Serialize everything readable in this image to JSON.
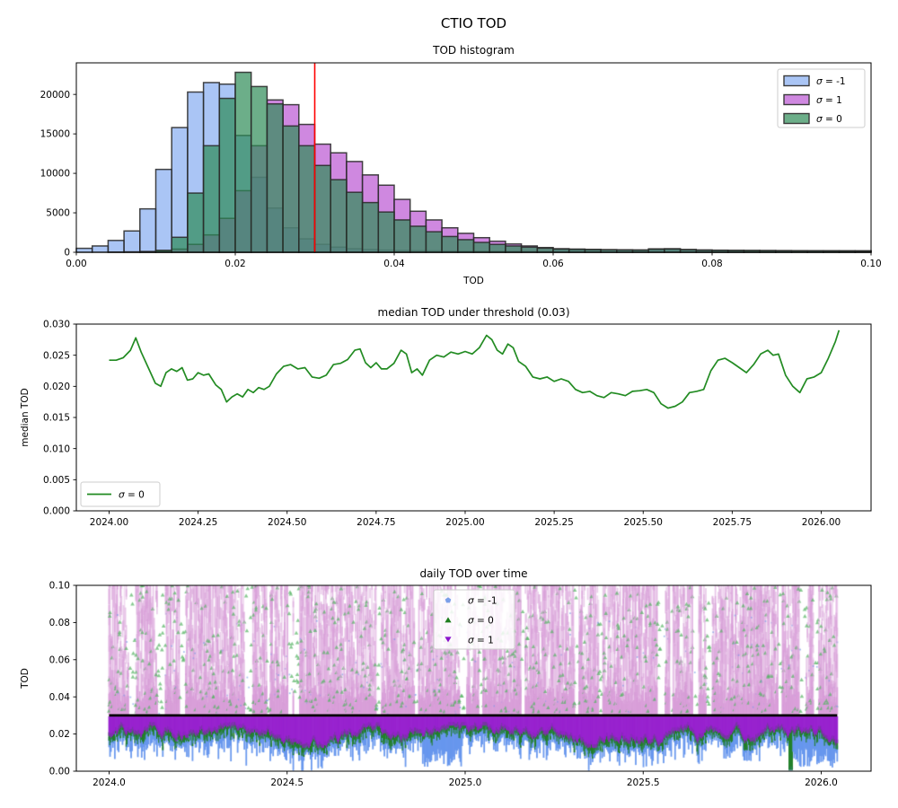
{
  "figure": {
    "title": "CTIO TOD"
  },
  "colors": {
    "hist_edge": "#2b2b2b",
    "threshold_red": "#ff0000",
    "threshold_black": "#000000",
    "blue": "#6495ED",
    "purple": "#BA55D3",
    "green": "#2E8B57",
    "line_green": "#228B22",
    "scatter_blue": "#6495ED",
    "scatter_green": "#1e7d1e",
    "scatter_purple": "#9400D3",
    "scatter_plum": "rgba(216,157,216,0.85)",
    "scatter_purple_dense": "rgba(150,30,205,0.95)"
  },
  "chart_data": [
    {
      "type": "bar",
      "title": "TOD histogram",
      "xlabel": "TOD",
      "xlim": [
        0,
        0.1
      ],
      "ylim": [
        0,
        24000
      ],
      "bin_start": 0,
      "bin_width": 0.002,
      "xticks": {
        "values": [
          0,
          0.02,
          0.04,
          0.06,
          0.08,
          0.1
        ],
        "labels": [
          "0.00",
          "0.02",
          "0.04",
          "0.06",
          "0.08",
          "0.10"
        ]
      },
      "yticks": {
        "values": [
          0,
          5000,
          10000,
          15000,
          20000
        ],
        "labels": [
          "0",
          "5000",
          "10000",
          "15000",
          "20000"
        ]
      },
      "threshold_line": {
        "x": 0.03
      },
      "legend_loc": "upper right",
      "series": [
        {
          "name": "σ = -1",
          "color": "#6495ED",
          "alpha": 0.55,
          "counts": [
            500,
            800,
            1500,
            2700,
            5500,
            10500,
            15800,
            20300,
            21500,
            21300,
            14800,
            9500,
            5600,
            3100,
            1700,
            1000,
            650,
            450,
            350,
            280,
            230,
            200,
            180,
            160,
            150,
            140,
            130,
            120,
            110,
            100,
            320,
            300,
            280,
            260,
            240,
            230,
            340,
            360,
            280,
            230,
            210,
            200,
            190,
            180,
            170,
            170,
            160,
            160,
            150,
            150
          ]
        },
        {
          "name": "σ = 1",
          "color": "#BA55D3",
          "alpha": 0.7,
          "counts": [
            0,
            0,
            0,
            0,
            50,
            150,
            400,
            1000,
            2200,
            4300,
            7800,
            13500,
            19300,
            18700,
            16200,
            13700,
            12600,
            11500,
            9800,
            8500,
            6700,
            5200,
            4100,
            3100,
            2400,
            1850,
            1400,
            1050,
            800,
            600,
            450,
            400,
            360,
            330,
            310,
            290,
            430,
            450,
            350,
            290,
            260,
            240,
            230,
            220,
            210,
            200,
            190,
            190,
            180,
            180
          ]
        },
        {
          "name": "σ = 0",
          "color": "#2E8B57",
          "alpha": 0.7,
          "counts": [
            0,
            0,
            20,
            50,
            100,
            250,
            1900,
            7500,
            13500,
            19500,
            22800,
            21000,
            18800,
            16000,
            13500,
            11000,
            9200,
            7600,
            6300,
            5100,
            4100,
            3300,
            2600,
            2000,
            1600,
            1250,
            1000,
            800,
            650,
            520,
            420,
            380,
            350,
            320,
            300,
            280,
            400,
            420,
            330,
            270,
            250,
            230,
            220,
            210,
            200,
            190,
            190,
            180,
            180,
            170
          ]
        }
      ]
    },
    {
      "type": "line",
      "title": "median TOD under threshold (0.03)",
      "ylabel": "median TOD",
      "xlim": [
        2023.908,
        2026.14
      ],
      "ylim": [
        0,
        0.03
      ],
      "xticks": {
        "values": [
          2024.0,
          2024.25,
          2024.5,
          2024.75,
          2025.0,
          2025.25,
          2025.5,
          2025.75,
          2026.0
        ],
        "labels": [
          "2024.00",
          "2024.25",
          "2024.50",
          "2024.75",
          "2025.00",
          "2025.25",
          "2025.50",
          "2025.75",
          "2026.00"
        ]
      },
      "yticks": {
        "values": [
          0,
          0.005,
          0.01,
          0.015,
          0.02,
          0.025,
          0.03
        ],
        "labels": [
          "0.000",
          "0.005",
          "0.010",
          "0.015",
          "0.020",
          "0.025",
          "0.030"
        ]
      },
      "legend_loc": "lower left",
      "series": [
        {
          "name": "σ = 0",
          "color": "#228B22",
          "x": [
            2024.0,
            2024.02,
            2024.04,
            2024.06,
            2024.075,
            2024.09,
            2024.11,
            2024.13,
            2024.145,
            2024.16,
            2024.175,
            2024.19,
            2024.205,
            2024.22,
            2024.235,
            2024.25,
            2024.265,
            2024.28,
            2024.3,
            2024.315,
            2024.33,
            2024.345,
            2024.36,
            2024.375,
            2024.39,
            2024.405,
            2024.42,
            2024.435,
            2024.45,
            2024.47,
            2024.49,
            2024.51,
            2024.53,
            2024.55,
            2024.57,
            2024.59,
            2024.61,
            2024.63,
            2024.65,
            2024.67,
            2024.69,
            2024.705,
            2024.72,
            2024.735,
            2024.75,
            2024.765,
            2024.78,
            2024.8,
            2024.82,
            2024.835,
            2024.85,
            2024.865,
            2024.88,
            2024.9,
            2024.92,
            2024.94,
            2024.96,
            2024.98,
            2025.0,
            2025.02,
            2025.04,
            2025.06,
            2025.075,
            2025.09,
            2025.105,
            2025.12,
            2025.135,
            2025.15,
            2025.17,
            2025.19,
            2025.21,
            2025.23,
            2025.25,
            2025.27,
            2025.29,
            2025.31,
            2025.33,
            2025.35,
            2025.37,
            2025.39,
            2025.41,
            2025.43,
            2025.45,
            2025.47,
            2025.49,
            2025.51,
            2025.53,
            2025.55,
            2025.57,
            2025.59,
            2025.61,
            2025.63,
            2025.65,
            2025.67,
            2025.69,
            2025.71,
            2025.73,
            2025.75,
            2025.77,
            2025.79,
            2025.81,
            2025.83,
            2025.85,
            2025.865,
            2025.88,
            2025.9,
            2025.92,
            2025.94,
            2025.96,
            2025.98,
            2026.0,
            2026.02,
            2026.04,
            2026.05
          ],
          "y": [
            0.0242,
            0.0242,
            0.0246,
            0.0258,
            0.0278,
            0.0255,
            0.023,
            0.0205,
            0.02,
            0.0222,
            0.0228,
            0.0224,
            0.023,
            0.021,
            0.0212,
            0.0222,
            0.0218,
            0.022,
            0.0202,
            0.0195,
            0.0175,
            0.0183,
            0.0188,
            0.0183,
            0.0195,
            0.019,
            0.0198,
            0.0195,
            0.02,
            0.022,
            0.0232,
            0.0235,
            0.0228,
            0.023,
            0.0215,
            0.0213,
            0.0218,
            0.0235,
            0.0237,
            0.0243,
            0.0258,
            0.026,
            0.0238,
            0.023,
            0.0238,
            0.0228,
            0.0228,
            0.0237,
            0.0258,
            0.0252,
            0.0222,
            0.0228,
            0.0218,
            0.0242,
            0.025,
            0.0247,
            0.0255,
            0.0252,
            0.0256,
            0.0252,
            0.0262,
            0.0282,
            0.0275,
            0.0258,
            0.0252,
            0.0268,
            0.0262,
            0.024,
            0.0232,
            0.0215,
            0.0212,
            0.0215,
            0.0208,
            0.0212,
            0.0208,
            0.0195,
            0.019,
            0.0192,
            0.0185,
            0.0182,
            0.019,
            0.0188,
            0.0185,
            0.0192,
            0.0193,
            0.0195,
            0.019,
            0.0172,
            0.0165,
            0.0168,
            0.0175,
            0.019,
            0.0192,
            0.0195,
            0.0225,
            0.0242,
            0.0245,
            0.0238,
            0.023,
            0.0222,
            0.0235,
            0.0252,
            0.0258,
            0.025,
            0.0252,
            0.0218,
            0.02,
            0.019,
            0.0212,
            0.0215,
            0.0222,
            0.0245,
            0.0272,
            0.029
          ]
        }
      ]
    },
    {
      "type": "scatter",
      "title": "daily TOD over time",
      "ylabel": "TOD",
      "xlim": [
        2023.908,
        2026.14
      ],
      "ylim": [
        0,
        0.1
      ],
      "xticks": {
        "values": [
          2024.0,
          2024.5,
          2025.0,
          2025.5,
          2026.0
        ],
        "labels": [
          "2024.0",
          "2024.5",
          "2025.0",
          "2025.5",
          "2026.0"
        ]
      },
      "yticks": {
        "values": [
          0,
          0.02,
          0.04,
          0.06,
          0.08,
          0.1
        ],
        "labels": [
          "0.00",
          "0.02",
          "0.04",
          "0.06",
          "0.08",
          "0.10"
        ]
      },
      "threshold_line": {
        "y": 0.03
      },
      "legend_loc": "upper center",
      "series": [
        {
          "name": "σ = -1",
          "marker": "pentagon",
          "color": "#6495ED",
          "band": "lowest fringe ~0.002-0.02"
        },
        {
          "name": "σ = 0",
          "marker": "triangle-up",
          "color": "#1e7d1e",
          "band": "fringe ~0.012-0.022 plus sparse points above threshold"
        },
        {
          "name": "σ = 1",
          "marker": "triangle-down",
          "color": "#9400D3",
          "band": "dense 0.02-0.03 below threshold, faded streaks 0.03-0.10 above"
        }
      ],
      "gen": {
        "seed": 11,
        "t_start": 2024.0,
        "t_end": 2026.045,
        "columns": 760
      }
    }
  ]
}
